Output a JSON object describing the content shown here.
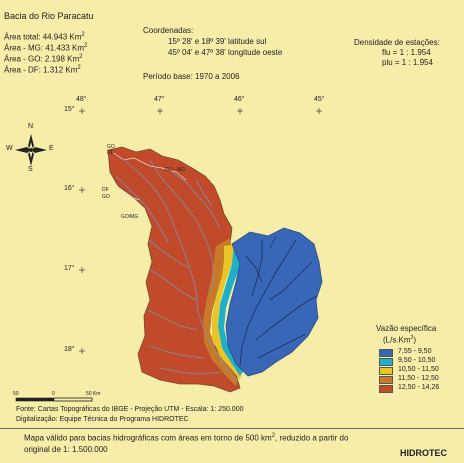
{
  "header": {
    "title": "Bacia do Rio Paracatu",
    "areas": [
      "Área total: 44.943 Km",
      "Área - MG: 41.433 Km",
      "Área - GO: 2.198 Km",
      "Área - DF: 1.312 Km"
    ],
    "area_unit_sup": "2"
  },
  "coords": {
    "label": "Coordenadas:",
    "lat_line": "15º 28' e 18º 39'  latitude sul",
    "lon_line": "45º 04' e 47º 38'  longitude oeste",
    "period": "Período base:  1970  a 2006"
  },
  "density": {
    "label": "Densidade de estações:",
    "flu": "flu  = 1 : 1.954",
    "plu": "plu = 1 : 1.954"
  },
  "grid": {
    "longitudes": [
      "48°",
      "47°",
      "46°",
      "45°"
    ],
    "latitudes": [
      "15°",
      "16°",
      "17°",
      "18°"
    ]
  },
  "compass": {
    "n": "N",
    "s": "S",
    "e": "E",
    "w": "W"
  },
  "boundaries": [
    "GO",
    "DF",
    "GO - MG",
    "DF",
    "GO",
    "GO/MG"
  ],
  "scale": {
    "ticks": [
      "50",
      "0",
      "50 Km"
    ]
  },
  "legend": {
    "title": "Vazão específica",
    "unit": "(L/s.Km",
    "unit_sup": "2",
    "unit_end": ")",
    "classes": [
      {
        "label": "7,55 -   9,50",
        "color": "#3867b8"
      },
      {
        "label": "9,50 - 10,50",
        "color": "#1fb0c9"
      },
      {
        "label": "10,50 - 11,50",
        "color": "#e8c628"
      },
      {
        "label": "11,50 - 12,50",
        "color": "#c87a28"
      },
      {
        "label": "12,50 - 14,26",
        "color": "#c14a2a"
      }
    ]
  },
  "footer": {
    "source": "Fonte: Cartas Topográficas do IBGE - Projeção UTM - Escala: 1: 250.000",
    "digitization": "Digitalização: Equipe Técnica do Programa HIDROTEC",
    "note_1": "Mapa válido para bacias hidrográficas com áreas em torno de 500 km",
    "note_sup": "2",
    "note_2": ", reduzido a partir do",
    "note_3": "original de 1: 1.500.000",
    "brand": "HIDROTEC"
  }
}
